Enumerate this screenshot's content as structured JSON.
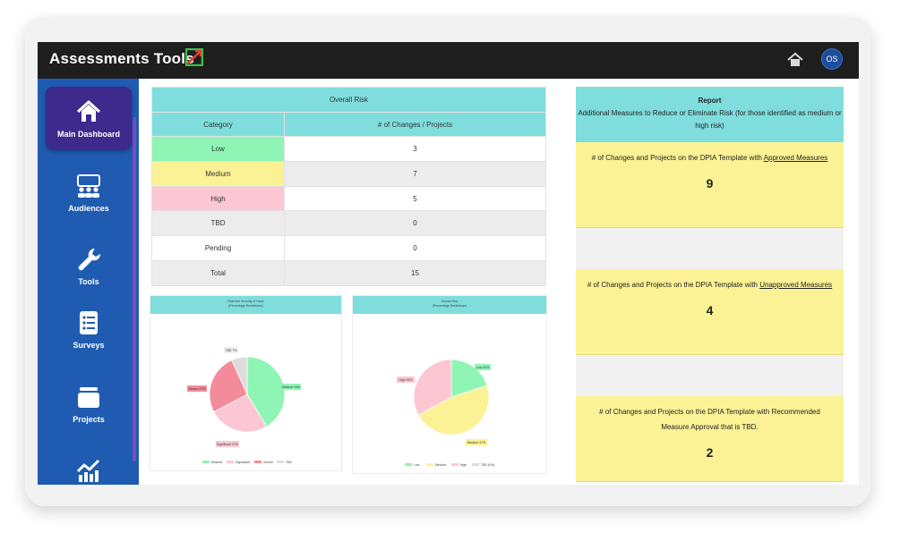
{
  "app": {
    "title": "Assessments Tools",
    "user_initials": "OS"
  },
  "sidebar": {
    "items": [
      {
        "label": "Main Dashboard",
        "icon": "home-icon",
        "active": true
      },
      {
        "label": "Audiences",
        "icon": "audience-icon",
        "active": false
      },
      {
        "label": "Tools",
        "icon": "wrench-icon",
        "active": false
      },
      {
        "label": "Surveys",
        "icon": "checklist-icon",
        "active": false
      },
      {
        "label": "Projects",
        "icon": "folder-icon",
        "active": false
      },
      {
        "label": "",
        "icon": "trend-chart-icon",
        "active": false
      }
    ]
  },
  "overall_risk_table": {
    "title": "Overall Risk",
    "headers": [
      "Category",
      "# of Changes / Projects"
    ],
    "rows": [
      {
        "category": "Low",
        "count": "3"
      },
      {
        "category": "Medium",
        "count": "7"
      },
      {
        "category": "High",
        "count": "5"
      },
      {
        "category": "TBD",
        "count": "0"
      },
      {
        "category": "Pending",
        "count": "0"
      },
      {
        "category": "Total",
        "count": "15"
      }
    ]
  },
  "pie_severity": {
    "title": "Potential Severity of Harm",
    "subtitle": "(Percentage Breakdown)",
    "labels": [
      "Minimal 43%",
      "Significant 27%",
      "Severe 27%",
      "TBD 7%"
    ],
    "legend": [
      "Minimal",
      "Significant",
      "Severe",
      "TBD"
    ]
  },
  "pie_overall": {
    "title": "Overall Risk",
    "subtitle": "(Percentage Breakdown)",
    "labels": [
      "Low 20%",
      "Medium 47%",
      "High 33%"
    ],
    "legend": [
      "Low",
      "Medium",
      "High",
      "TBD (0%)"
    ]
  },
  "chart_data": [
    {
      "type": "pie",
      "title": "Potential Severity of Harm",
      "subtitle": "(Percentage Breakdown)",
      "categories": [
        "Minimal",
        "Significant",
        "Severe",
        "TBD"
      ],
      "values": [
        43,
        27,
        27,
        7
      ],
      "colors": [
        "#8ff5b5",
        "#fcc7d3",
        "#f48b9a",
        "#dcdcdc"
      ],
      "legend": "bottom"
    },
    {
      "type": "pie",
      "title": "Overall Risk",
      "subtitle": "(Percentage Breakdown)",
      "categories": [
        "Low",
        "Medium",
        "High",
        "TBD"
      ],
      "values": [
        20,
        47,
        33,
        0
      ],
      "colors": [
        "#8ff5b5",
        "#fbf295",
        "#fcc7d3",
        "#dcdcdc"
      ],
      "legend": "bottom"
    }
  ],
  "report": {
    "title": "Report",
    "subtitle": "Additional Measures to Reduce or Eliminate Risk (for those identified as medium or high risk)",
    "blocks": [
      {
        "text_pre": "# of Changes and Projects on the DPIA Template with ",
        "text_u": "Approved Measures",
        "text_post": "",
        "value": "9"
      },
      {
        "text_pre": "# of Changes and Projects on the DPIA Template with ",
        "text_u": "Unapproved Measures",
        "text_post": "",
        "value": "4"
      },
      {
        "text_pre": "# of Changes and Projects on the DPIA Template with Recommended Measure Approval that is TBD.",
        "text_u": "",
        "text_post": "",
        "value": "2"
      }
    ]
  }
}
